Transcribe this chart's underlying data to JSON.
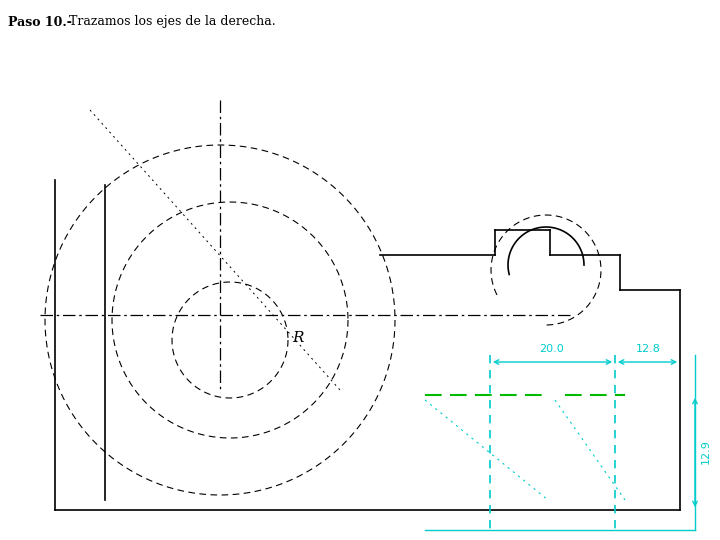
{
  "title_bold": "Paso 10.-",
  "title_normal": " Trazamos los ejes de la derecha.",
  "bg_color": "#ffffff",
  "black": "#000000",
  "cyan": "#00cccc",
  "green": "#00bb00",
  "dim_20": "20.0",
  "dim_128": "12.8",
  "dim_129": "12.9"
}
